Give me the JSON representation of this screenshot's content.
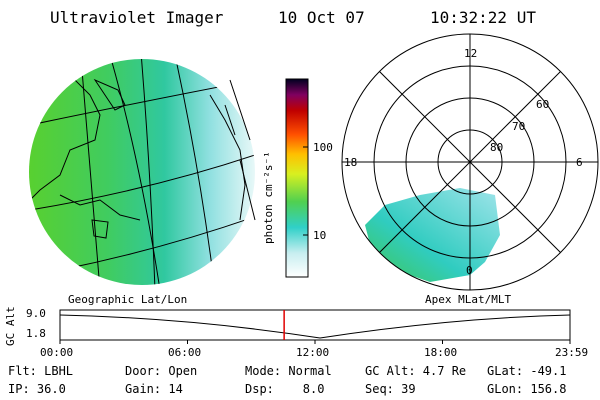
{
  "header": {
    "instrument": "Ultraviolet Imager",
    "date": "10 Oct 07",
    "time": "10:32:22 UT"
  },
  "colorbar": {
    "unit_label": "photon cm⁻²s⁻¹",
    "ticks": [
      "100",
      "10"
    ]
  },
  "polar_plot": {
    "mlt_labels": {
      "top": "12",
      "left": "18",
      "right": "6",
      "bottom": "0"
    },
    "lat_labels": [
      "60",
      "70",
      "80"
    ]
  },
  "captions": {
    "left": "Geographic Lat/Lon",
    "right": "Apex MLat/MLT"
  },
  "altitude_plot": {
    "axis_label": "GC Alt",
    "y_ticks": [
      "9.0",
      "1.8"
    ],
    "x_ticks": [
      "00:00",
      "06:00",
      "12:00",
      "18:00",
      "23:59"
    ],
    "current_time_marker_hours": 10.54,
    "marker_color": "#e00000"
  },
  "info": {
    "r1": {
      "c1": "Flt: LBHL",
      "c2": "Door: Open",
      "c3": "Mode: Normal",
      "c4": "GC Alt: 4.7 Re",
      "c5": "GLat: -49.1"
    },
    "r2": {
      "c1": "IP: 36.0",
      "c2": "Gain: 14",
      "c3": "Dsp:    8.0",
      "c4": "Seq: 39",
      "c5": "GLon: 156.8"
    }
  }
}
